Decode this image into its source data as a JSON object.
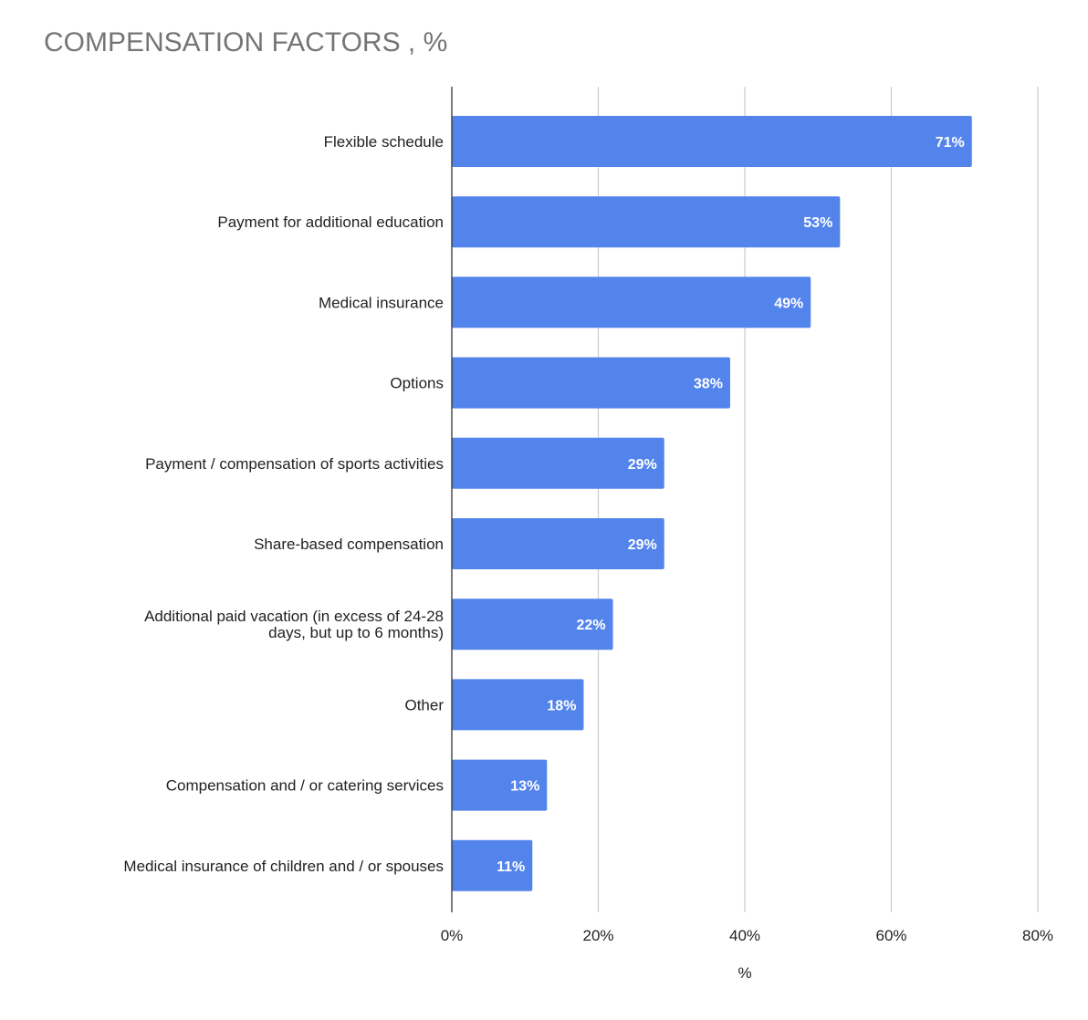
{
  "chart_data": {
    "type": "bar",
    "orientation": "horizontal",
    "title": "COMPENSATION FACTORS , %",
    "xlabel": "%",
    "ylabel": "",
    "xlim": [
      0,
      80
    ],
    "xticks": [
      0,
      20,
      40,
      60,
      80
    ],
    "xtick_labels": [
      "0%",
      "20%",
      "40%",
      "60%",
      "80%"
    ],
    "grid": true,
    "legend": "none",
    "bar_color": "#5384ec",
    "categories": [
      "Flexible schedule",
      "Payment for additional education",
      "Medical insurance",
      "Options",
      "Payment / compensation of sports activities",
      "Share-based compensation",
      "Additional paid vacation (in excess of 24-28 days, but up to 6 months)",
      "Other",
      "Compensation and / or catering services",
      "Medical insurance of children and / or spouses"
    ],
    "values": [
      71,
      53,
      49,
      38,
      29,
      29,
      22,
      18,
      13,
      11
    ],
    "data_labels": [
      "71%",
      "53%",
      "49%",
      "38%",
      "29%",
      "29%",
      "22%",
      "18%",
      "13%",
      "11%"
    ]
  }
}
